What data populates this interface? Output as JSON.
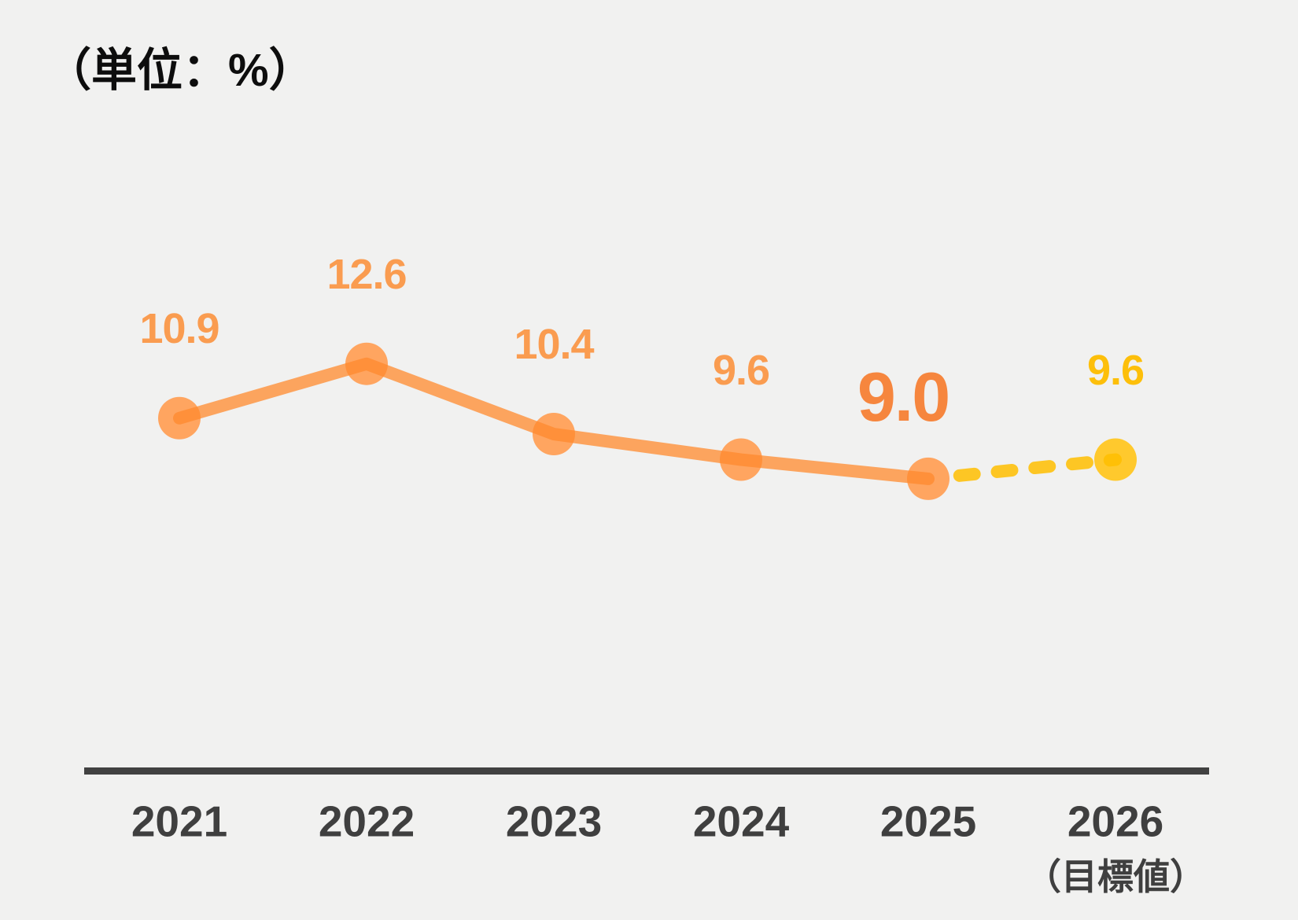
{
  "unit_label": "（単位：%）",
  "chart_data": {
    "type": "line",
    "title": "（単位：%）",
    "categories": [
      "2021",
      "2022",
      "2023",
      "2024",
      "2025",
      "2026"
    ],
    "category_note": {
      "index": 5,
      "text": "（目標値）"
    },
    "values": [
      10.9,
      12.6,
      10.4,
      9.6,
      9.0,
      9.6
    ],
    "point_labels": [
      "10.9",
      "12.6",
      "10.4",
      "9.6",
      "9.0",
      "9.6"
    ],
    "emphasized_point_index": 4,
    "target_point_index": 5,
    "solid_span": [
      0,
      4
    ],
    "dashed_span": [
      4,
      5
    ],
    "ylim": [
      0,
      14
    ],
    "grid": false,
    "legend_position": "none",
    "colors": {
      "background": "#F1F1F0",
      "line": "#FF8A2D",
      "marker": "#FFA560",
      "value_label": "#FA9C50",
      "emphasis_label": "#F6863E",
      "target_line": "#FFBE00",
      "target_marker": "#FFC92D",
      "target_label": "#FDBF0A",
      "axis": "#414141",
      "axis_text": "#3F3F3F",
      "title_text": "#0D0D0D"
    }
  }
}
